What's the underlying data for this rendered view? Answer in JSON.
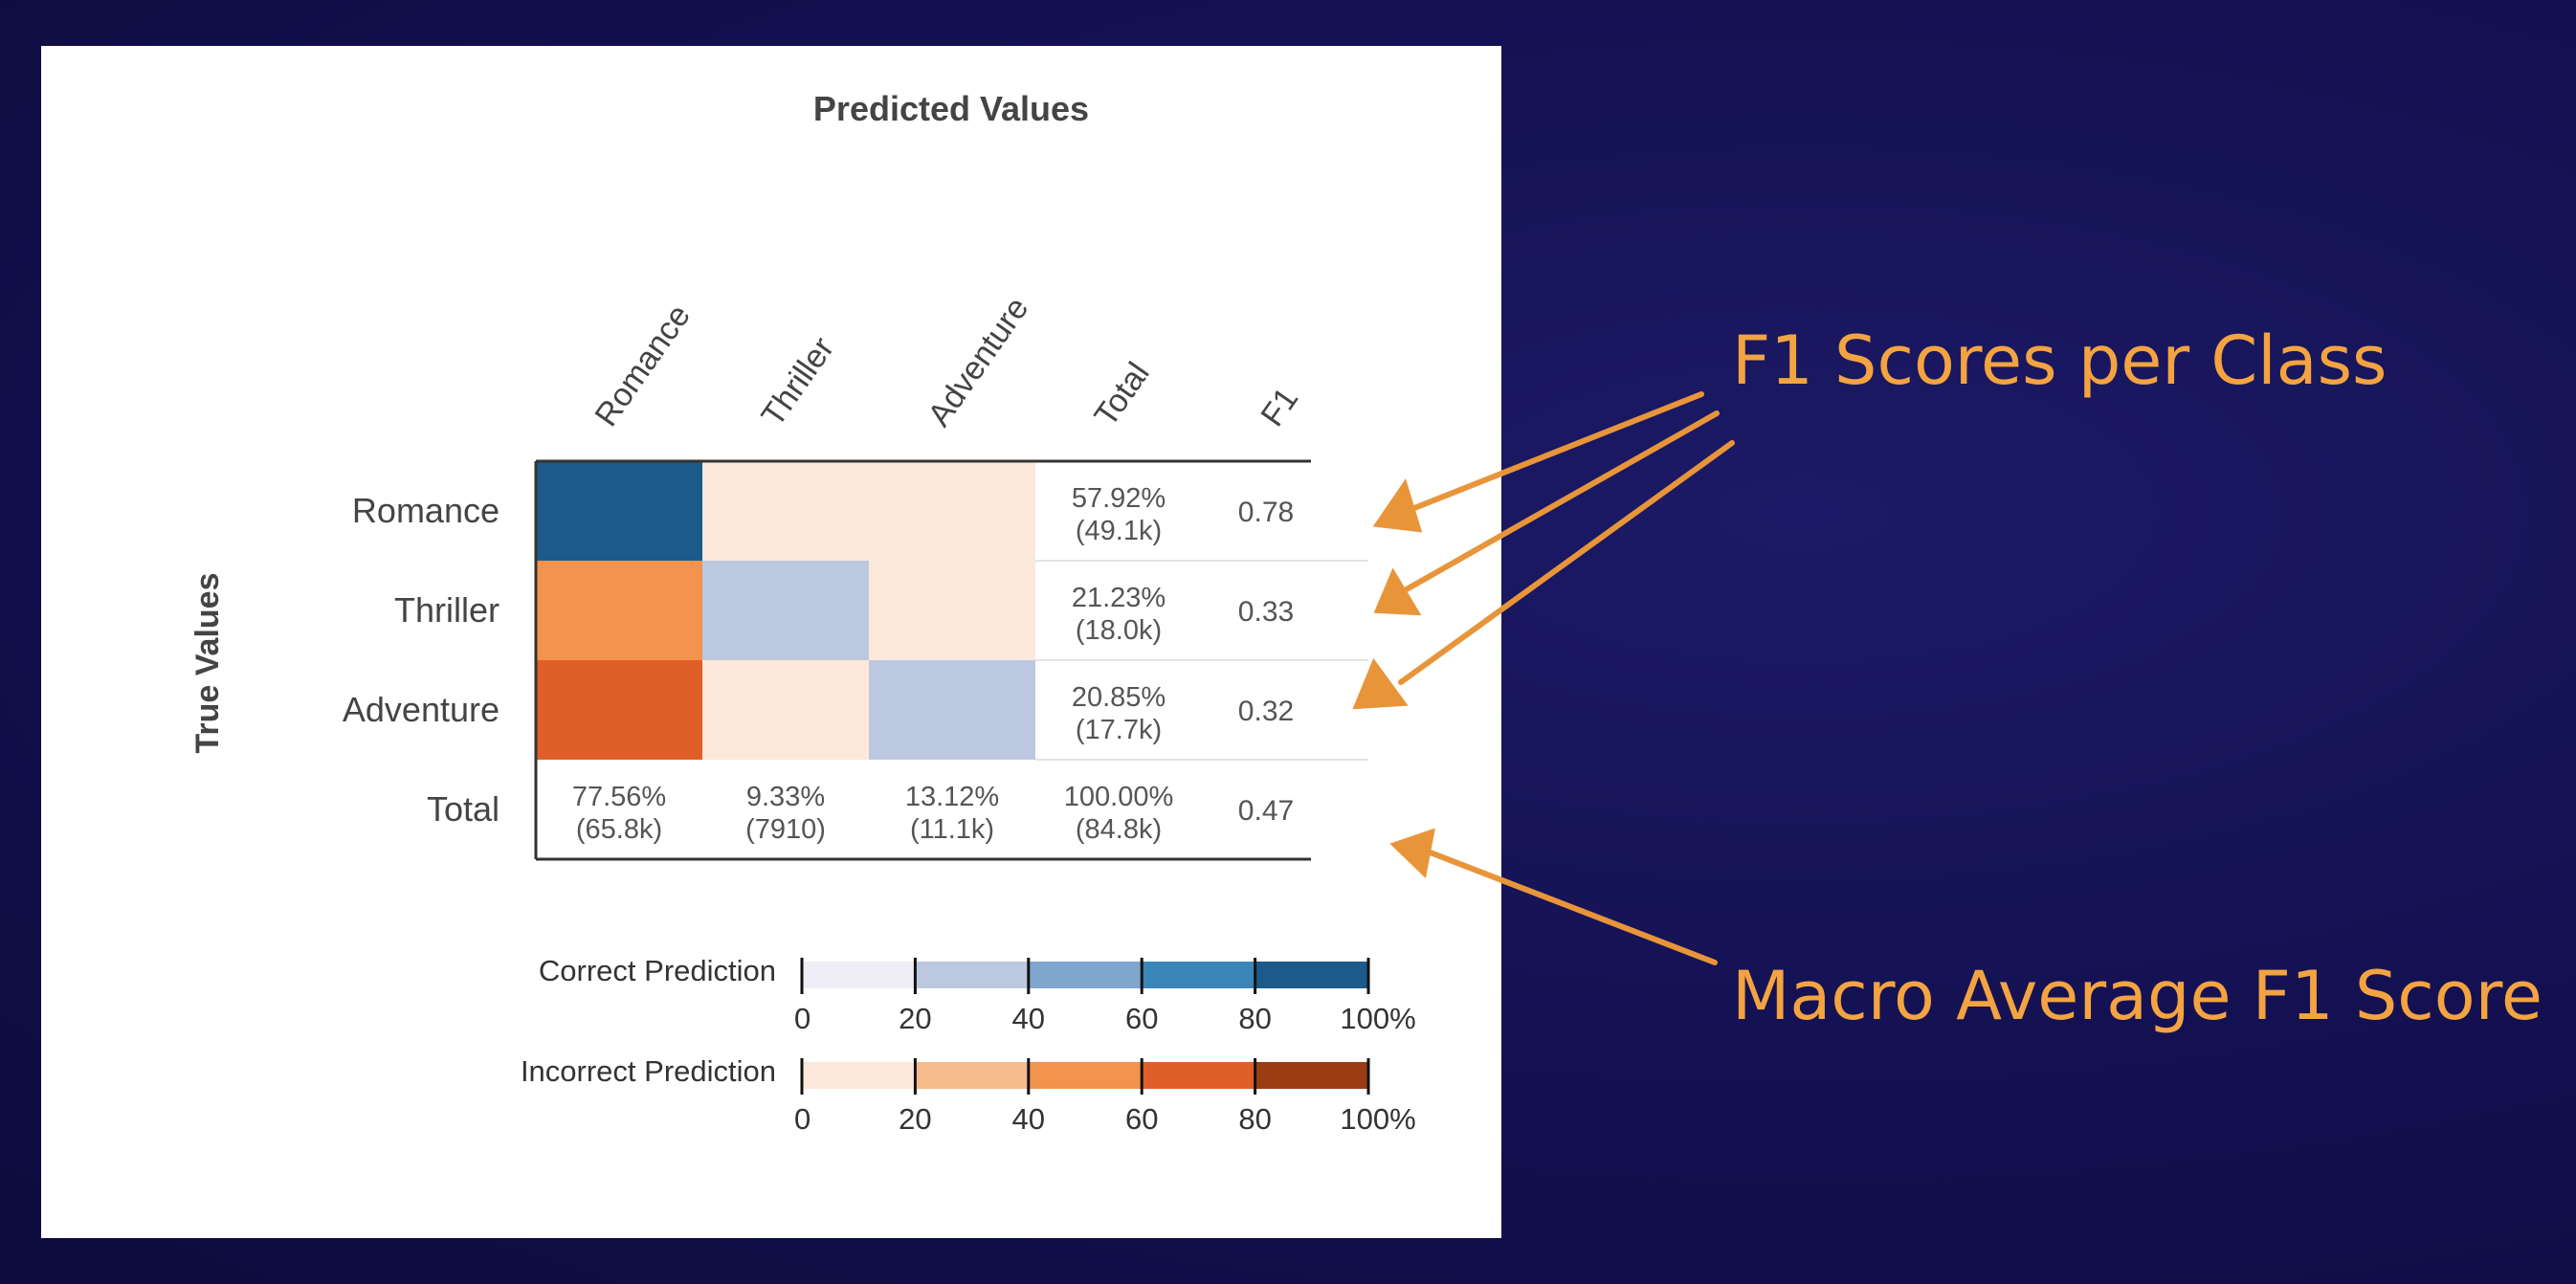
{
  "chart_data": {
    "type": "heatmap",
    "title": "Predicted Values",
    "ylabel": "True Values",
    "columns": [
      "Romance",
      "Thriller",
      "Adventure",
      "Total",
      "F1"
    ],
    "rows": [
      "Romance",
      "Thriller",
      "Adventure",
      "Total"
    ],
    "cells": [
      [
        {
          "kind": "correct",
          "level": 95
        },
        {
          "kind": "incorrect",
          "level": 5
        },
        {
          "kind": "incorrect",
          "level": 5
        }
      ],
      [
        {
          "kind": "incorrect",
          "level": 55
        },
        {
          "kind": "correct",
          "level": 30
        },
        {
          "kind": "incorrect",
          "level": 5
        }
      ],
      [
        {
          "kind": "incorrect",
          "level": 75
        },
        {
          "kind": "incorrect",
          "level": 5
        },
        {
          "kind": "correct",
          "level": 30
        }
      ]
    ],
    "row_totals": [
      {
        "pct": "57.92%",
        "count": "(49.1k)",
        "f1": "0.78"
      },
      {
        "pct": "21.23%",
        "count": "(18.0k)",
        "f1": "0.33"
      },
      {
        "pct": "20.85%",
        "count": "(17.7k)",
        "f1": "0.32"
      }
    ],
    "column_totals": [
      {
        "pct": "77.56%",
        "count": "(65.8k)"
      },
      {
        "pct": "9.33%",
        "count": "(7910)"
      },
      {
        "pct": "13.12%",
        "count": "(11.1k)"
      },
      {
        "pct": "100.00%",
        "count": "(84.8k)"
      }
    ],
    "macro_f1": "0.47",
    "legends": [
      {
        "label": "Correct Prediction",
        "colors": [
          "#efedf5",
          "#bcc8df",
          "#7ea6cf",
          "#3a86bb",
          "#1b5a8a"
        ]
      },
      {
        "label": "Incorrect Prediction",
        "colors": [
          "#fde9dc",
          "#f6bb8a",
          "#f3934e",
          "#e05f28",
          "#9a3d15"
        ]
      }
    ],
    "legend_ticks": [
      "0",
      "20",
      "40",
      "60",
      "80",
      "100%"
    ]
  },
  "annotations": {
    "f1_per_class": "F1 Scores per Class",
    "macro_f1": "Macro Average F1 Score"
  },
  "colors": {
    "background": "#15125a",
    "annotation": "#f4a341",
    "panel": "#ffffff"
  }
}
